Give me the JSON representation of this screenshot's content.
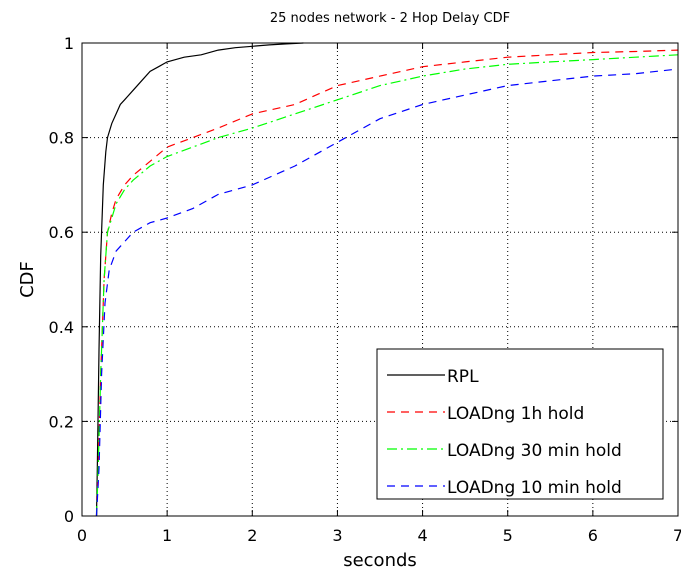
{
  "chart_data": {
    "type": "line",
    "title": "25 nodes network - 2 Hop Delay CDF",
    "xlabel": "seconds",
    "ylabel": "CDF",
    "xlim": [
      0,
      7
    ],
    "ylim": [
      0,
      1
    ],
    "xticks": [
      "0",
      "1",
      "2",
      "3",
      "4",
      "5",
      "6",
      "7"
    ],
    "yticks": [
      "0",
      "0.2",
      "0.4",
      "0.6",
      "0.8",
      "1"
    ],
    "grid": true,
    "legend_position": "bottom-right",
    "series": [
      {
        "name": "RPL",
        "color": "#000000",
        "dash": "solid",
        "points": [
          [
            0.17,
            0
          ],
          [
            0.18,
            0.1
          ],
          [
            0.2,
            0.35
          ],
          [
            0.22,
            0.55
          ],
          [
            0.25,
            0.7
          ],
          [
            0.28,
            0.77
          ],
          [
            0.3,
            0.8
          ],
          [
            0.35,
            0.83
          ],
          [
            0.4,
            0.85
          ],
          [
            0.45,
            0.87
          ],
          [
            0.5,
            0.88
          ],
          [
            0.6,
            0.9
          ],
          [
            0.7,
            0.92
          ],
          [
            0.8,
            0.94
          ],
          [
            0.9,
            0.95
          ],
          [
            1.0,
            0.96
          ],
          [
            1.2,
            0.97
          ],
          [
            1.4,
            0.975
          ],
          [
            1.6,
            0.985
          ],
          [
            1.8,
            0.99
          ],
          [
            2.0,
            0.993
          ],
          [
            2.2,
            0.996
          ],
          [
            2.4,
            0.998
          ],
          [
            2.6,
            1.0
          ]
        ]
      },
      {
        "name": "LOADng 1h hold",
        "color": "#ff0000",
        "dash": "8,6",
        "points": [
          [
            0.17,
            0
          ],
          [
            0.19,
            0.1
          ],
          [
            0.22,
            0.3
          ],
          [
            0.26,
            0.5
          ],
          [
            0.3,
            0.6
          ],
          [
            0.35,
            0.64
          ],
          [
            0.4,
            0.67
          ],
          [
            0.5,
            0.7
          ],
          [
            0.6,
            0.72
          ],
          [
            0.8,
            0.75
          ],
          [
            1.0,
            0.78
          ],
          [
            1.3,
            0.8
          ],
          [
            1.6,
            0.82
          ],
          [
            2.0,
            0.85
          ],
          [
            2.5,
            0.87
          ],
          [
            3.0,
            0.91
          ],
          [
            3.5,
            0.93
          ],
          [
            4.0,
            0.95
          ],
          [
            4.5,
            0.96
          ],
          [
            5.0,
            0.97
          ],
          [
            5.5,
            0.975
          ],
          [
            6.0,
            0.98
          ],
          [
            6.5,
            0.982
          ],
          [
            7.0,
            0.985
          ]
        ]
      },
      {
        "name": "LOADng 30 min hold",
        "color": "#00ff00",
        "dash": "10,4,2,4",
        "points": [
          [
            0.17,
            0
          ],
          [
            0.19,
            0.1
          ],
          [
            0.22,
            0.3
          ],
          [
            0.26,
            0.5
          ],
          [
            0.3,
            0.6
          ],
          [
            0.35,
            0.63
          ],
          [
            0.4,
            0.66
          ],
          [
            0.5,
            0.69
          ],
          [
            0.6,
            0.71
          ],
          [
            0.8,
            0.74
          ],
          [
            1.0,
            0.76
          ],
          [
            1.3,
            0.78
          ],
          [
            1.6,
            0.8
          ],
          [
            2.0,
            0.82
          ],
          [
            2.5,
            0.85
          ],
          [
            3.0,
            0.88
          ],
          [
            3.5,
            0.91
          ],
          [
            4.0,
            0.93
          ],
          [
            4.5,
            0.945
          ],
          [
            5.0,
            0.955
          ],
          [
            5.5,
            0.96
          ],
          [
            6.0,
            0.965
          ],
          [
            6.5,
            0.97
          ],
          [
            7.0,
            0.975
          ]
        ]
      },
      {
        "name": "LOADng 10 min hold",
        "color": "#0000ff",
        "dash": "8,6",
        "points": [
          [
            0.17,
            0
          ],
          [
            0.2,
            0.1
          ],
          [
            0.23,
            0.3
          ],
          [
            0.27,
            0.45
          ],
          [
            0.32,
            0.52
          ],
          [
            0.4,
            0.56
          ],
          [
            0.5,
            0.58
          ],
          [
            0.6,
            0.6
          ],
          [
            0.8,
            0.62
          ],
          [
            1.0,
            0.63
          ],
          [
            1.3,
            0.65
          ],
          [
            1.6,
            0.68
          ],
          [
            2.0,
            0.7
          ],
          [
            2.5,
            0.74
          ],
          [
            3.0,
            0.79
          ],
          [
            3.5,
            0.84
          ],
          [
            4.0,
            0.87
          ],
          [
            4.5,
            0.89
          ],
          [
            5.0,
            0.91
          ],
          [
            5.5,
            0.92
          ],
          [
            6.0,
            0.93
          ],
          [
            6.5,
            0.935
          ],
          [
            7.0,
            0.945
          ]
        ]
      }
    ]
  }
}
